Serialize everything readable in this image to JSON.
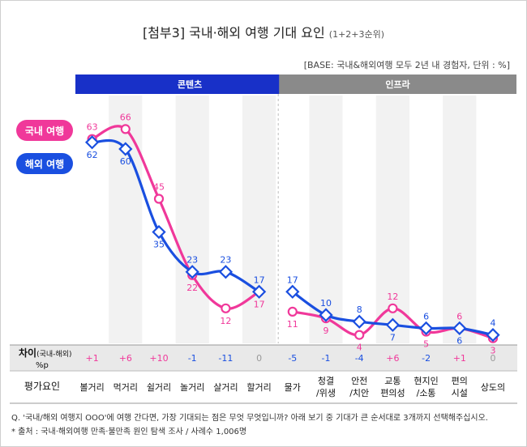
{
  "header": {
    "title_main": "[첨부3] 국내·해외 여행 기대 요인",
    "title_sub": "(1+2+3순위)",
    "base_note": "[BASE: 국내&해외여행 모두 2년 내 경험자, 단위 : %]"
  },
  "colors": {
    "domestic": "#f0389a",
    "overseas": "#1a4fe0",
    "content_band": "#1830c8",
    "infra_band": "#8a8a8a",
    "alt_col": "#f2f2f2",
    "diff_bg": "#e9e9e9"
  },
  "groups": [
    {
      "label": "콘텐츠",
      "start": 0,
      "end": 5
    },
    {
      "label": "인프라",
      "start": 6,
      "end": 11
    }
  ],
  "chart_data": {
    "type": "line",
    "categories": [
      "볼거리",
      "먹거리",
      "쉴거리",
      "놀거리",
      "살거리",
      "할거리",
      "물가",
      "청결\n/위생",
      "안전\n/치안",
      "교통\n편의성",
      "현지인\n/소통",
      "편의\n시설",
      "상도의"
    ],
    "category_lines": [
      [
        "볼거리"
      ],
      [
        "먹거리"
      ],
      [
        "쉴거리"
      ],
      [
        "놀거리"
      ],
      [
        "살거리"
      ],
      [
        "할거리"
      ],
      [
        "물가"
      ],
      [
        "청결",
        "/위생"
      ],
      [
        "안전",
        "/치안"
      ],
      [
        "교통",
        "편의성"
      ],
      [
        "현지인",
        "/소통"
      ],
      [
        "편의",
        "시설"
      ],
      [
        "상도의"
      ]
    ],
    "series": [
      {
        "name": "국내 여행",
        "color": "#f0389a",
        "values": [
          63,
          66,
          45,
          22,
          12,
          17,
          11,
          9,
          4,
          12,
          5,
          6,
          3
        ]
      },
      {
        "name": "해외 여행",
        "color": "#1a4fe0",
        "values": [
          62,
          60,
          35,
          23,
          23,
          17,
          17,
          10,
          8,
          7,
          6,
          6,
          4
        ]
      }
    ],
    "ylim": [
      0,
      70
    ]
  },
  "diff_row": {
    "label": "차이",
    "label_note": "(국내-해외)",
    "label_unit": "%p",
    "values": [
      "+1",
      "+6",
      "+10",
      "-1",
      "-11",
      "0",
      "-5",
      "-1",
      "-4",
      "+6",
      "-2",
      "+1",
      "0"
    ]
  },
  "factor_row": {
    "label": "평가요인"
  },
  "footnotes": [
    "Q. '국내/해외 여행지 OOO'에 여행 간다면, 가장 기대되는 점은 무엇 무엇입니까? 아래 보기 중 기대가 큰 순서대로 3개까지 선택해주십시오.",
    "* 출처 : 국내·해외여행 만족·불만족 원인 탐색 조사 / 사례수 1,006명"
  ]
}
